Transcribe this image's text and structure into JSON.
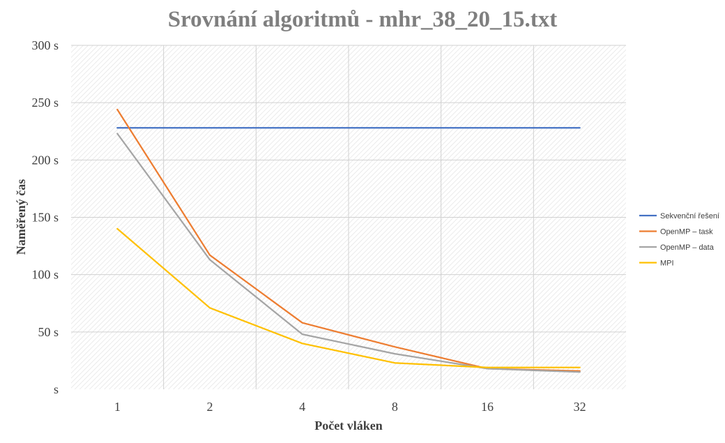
{
  "chart_data": {
    "type": "line",
    "title": "Srovnání algoritmů - mhr_38_20_15.txt",
    "xlabel": "Počet vláken",
    "ylabel": "Naměřený čas",
    "categories": [
      "1",
      "2",
      "4",
      "8",
      "16",
      "32"
    ],
    "y_tick_labels": [
      "s",
      "50 s",
      "100 s",
      "150 s",
      "200 s",
      "250 s",
      "300 s"
    ],
    "ylim": [
      0,
      300
    ],
    "yticks": [
      0,
      50,
      100,
      150,
      200,
      250,
      300
    ],
    "grid": true,
    "legend_position": "right",
    "series": [
      {
        "name": "Sekvenční řešení",
        "color": "#4472c4",
        "values": [
          228,
          228,
          228,
          228,
          228,
          228
        ]
      },
      {
        "name": "OpenMP – task",
        "color": "#ed7d31",
        "values": [
          244,
          117,
          58,
          37,
          18,
          16
        ]
      },
      {
        "name": "OpenMP – data",
        "color": "#a5a5a5",
        "values": [
          223,
          113,
          48,
          31,
          18,
          15
        ]
      },
      {
        "name": "MPI",
        "color": "#ffc000",
        "values": [
          140,
          71,
          40,
          23,
          19,
          19
        ]
      }
    ]
  }
}
